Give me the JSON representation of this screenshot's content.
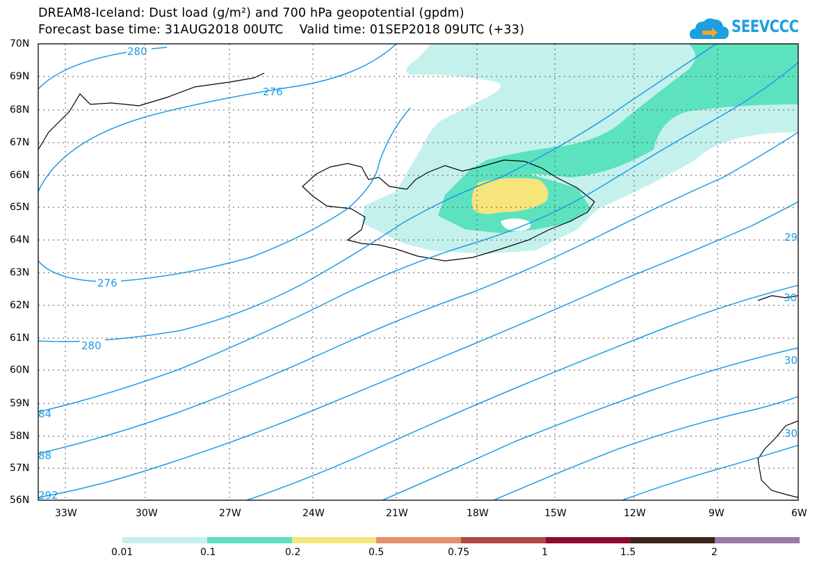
{
  "header": {
    "title_line1": "DREAM8-Iceland: Dust load (g/m²) and 700 hPa geopotential (gpdm)",
    "title_line2": "Forecast base time: 31AUG2018 00UTC    Valid time: 01SEP2018 09UTC (+33)"
  },
  "logo": {
    "text": "SEEVCCC",
    "color": "#1e9fe0"
  },
  "axes": {
    "lat_labels": [
      "70N",
      "69N",
      "68N",
      "67N",
      "66N",
      "65N",
      "64N",
      "63N",
      "62N",
      "61N",
      "60N",
      "59N",
      "58N",
      "57N",
      "56N"
    ],
    "lon_labels": [
      "33W",
      "30W",
      "27W",
      "24W",
      "21W",
      "18W",
      "15W",
      "12W",
      "9W",
      "6W"
    ]
  },
  "contours": {
    "color": "#1e9be6",
    "labels": [
      "280",
      "276",
      "276",
      "280",
      "84",
      "88",
      "292",
      "29",
      "30",
      "30",
      "30"
    ]
  },
  "colorbar": {
    "colors": [
      "#c4f1ec",
      "#5ce2be",
      "#f5e57a",
      "#e4906e",
      "#b04a40",
      "#8e0a30",
      "#3c2418",
      "#9a7aa6"
    ],
    "labels": [
      "0.01",
      "0.1",
      "0.2",
      "0.5",
      "0.75",
      "1",
      "1.5",
      "2"
    ]
  }
}
